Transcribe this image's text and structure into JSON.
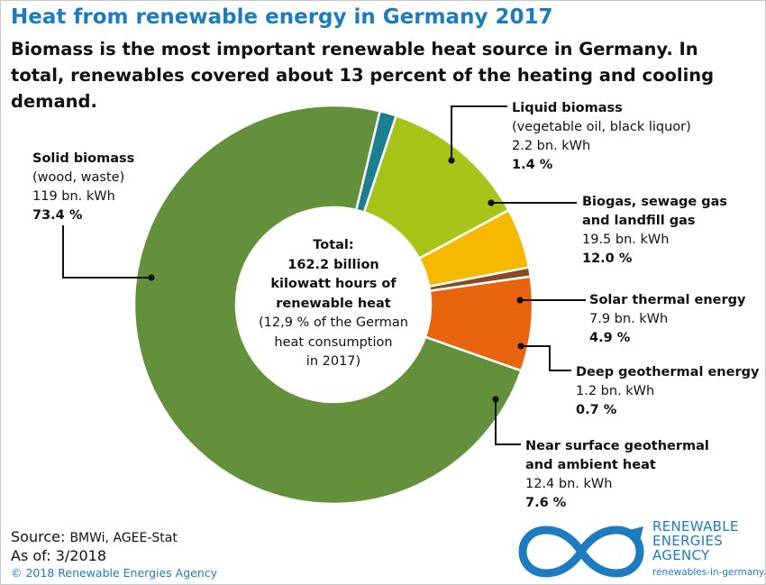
{
  "title": "Heat from renewable energy in Germany 2017",
  "subtitle": "Biomass is the most important renewable heat source in Germany. In total, renewables covered about 13 percent of the heating and cooling demand.",
  "center": {
    "line1": "Total:",
    "line2": "162.2 billion",
    "line3": "kilowatt hours of",
    "line4": "renewable heat",
    "line5": "(12,9 % of the German",
    "line6": "heat consumption",
    "line7": "in 2017)"
  },
  "chart_data": {
    "type": "pie",
    "donut": true,
    "total": "162.2 billion kilowatt hours of renewable heat",
    "series": [
      {
        "name": "Solid biomass",
        "detail": "(wood, waste)",
        "value_text": "119 bn. kWh",
        "value": 119,
        "percent": 73.4,
        "percent_text": "73.4 %",
        "color": "#63903a"
      },
      {
        "name": "Liquid biomass",
        "detail": "(vegetable oil, black liquor)",
        "value_text": "2.2 bn. kWh",
        "value": 2.2,
        "percent": 1.4,
        "percent_text": "1.4 %",
        "color": "#1b7f8e"
      },
      {
        "name": "Biogas, sewage gas and landfill gas",
        "name_line1": "Biogas, sewage gas",
        "name_line2": "and landfill gas",
        "value_text": "19.5 bn. kWh",
        "value": 19.5,
        "percent": 12.0,
        "percent_text": "12.0 %",
        "color": "#a8c418"
      },
      {
        "name": "Solar thermal energy",
        "value_text": "7.9 bn. kWh",
        "value": 7.9,
        "percent": 4.9,
        "percent_text": "4.9 %",
        "color": "#f7b800"
      },
      {
        "name": "Deep geothermal energy",
        "value_text": "1.2 bn. kWh",
        "value": 1.2,
        "percent": 0.7,
        "percent_text": "0.7 %",
        "color": "#8a4a22"
      },
      {
        "name": "Near surface geothermal and ambient heat",
        "name_line1": "Near surface geothermal",
        "name_line2": "and ambient heat",
        "value_text": "12.4 bn. kWh",
        "value": 12.4,
        "percent": 7.6,
        "percent_text": "7.6 %",
        "color": "#e8640e"
      }
    ]
  },
  "source": {
    "label": "Source:",
    "value": "BMWi, AGEE-Stat"
  },
  "as_of": {
    "label": "As of:",
    "value": "3/2018"
  },
  "copyright": "© 2018 Renewable Energies Agency",
  "logo": {
    "line1": "RENEWABLE",
    "line2": "ENERGIES",
    "line3": "AGENCY",
    "url": "renewables-in-germany.com",
    "color": "#1d7bbf"
  }
}
